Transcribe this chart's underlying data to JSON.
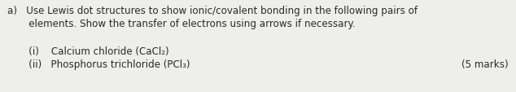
{
  "line1": "a)   Use Lewis dot structures to show ionic/covalent bonding in the following pairs of",
  "line2": "       elements. Show the transfer of electrons using arrows if necessary.",
  "line3": "       (i)    Calcium chloride (CaCl₂)",
  "line4": "       (ii)   Phosphorus trichloride (PCl₃)",
  "marks": "(5 marks)",
  "bg_color": "#eeeeec",
  "text_color": "#2a2a2a",
  "font_size": 8.6,
  "marks_font_size": 8.6
}
